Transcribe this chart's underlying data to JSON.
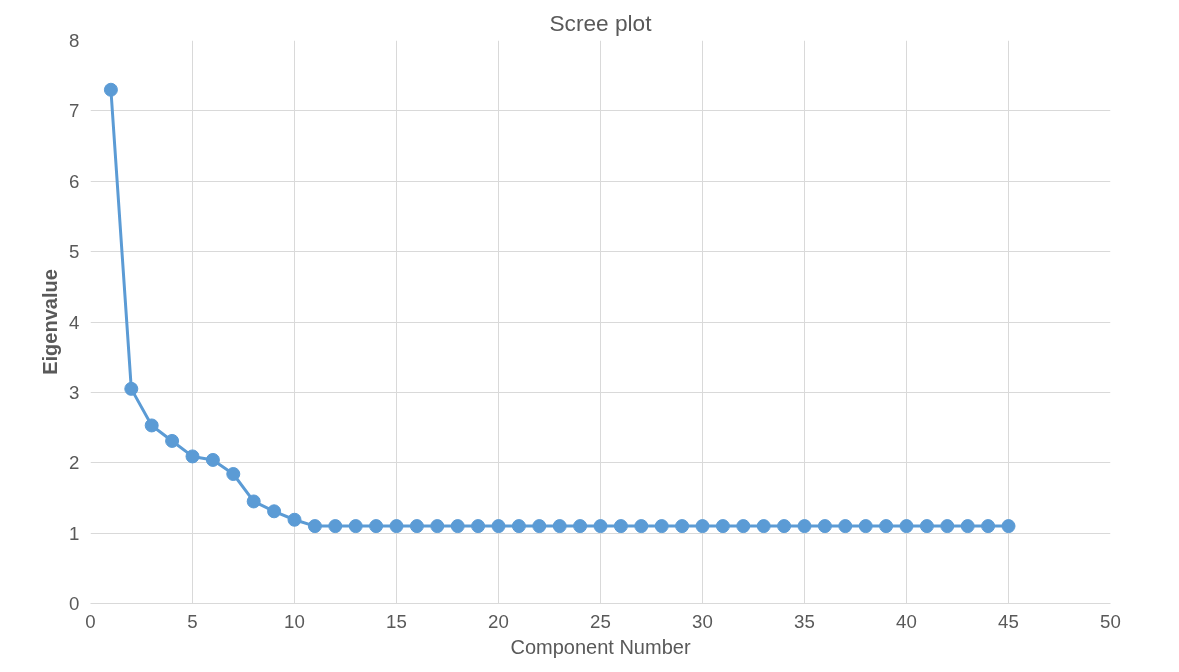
{
  "chart_data": {
    "type": "line",
    "title": "Scree plot",
    "xlabel": "Component Number",
    "ylabel": "Eigenvalue",
    "x": [
      1,
      2,
      3,
      4,
      5,
      6,
      7,
      8,
      9,
      10,
      11,
      12,
      13,
      14,
      15,
      16,
      17,
      18,
      19,
      20,
      21,
      22,
      23,
      24,
      25,
      26,
      27,
      28,
      29,
      30,
      31,
      32,
      33,
      34,
      35,
      36,
      37,
      38,
      39,
      40,
      41,
      42,
      43,
      44,
      45
    ],
    "series": [
      {
        "color": "#5b9bd5",
        "values": [
          7.3,
          3.05,
          2.53,
          2.31,
          2.09,
          2.04,
          1.84,
          1.45,
          1.31,
          1.19,
          1.1,
          1.1,
          1.1,
          1.1,
          1.1,
          1.1,
          1.1,
          1.1,
          1.1,
          1.1,
          1.1,
          1.1,
          1.1,
          1.1,
          1.1,
          1.1,
          1.1,
          1.1,
          1.1,
          1.1,
          1.1,
          1.1,
          1.1,
          1.1,
          1.1,
          1.1,
          1.1,
          1.1,
          1.1,
          1.1,
          1.1,
          1.1,
          1.1,
          1.1,
          1.1
        ]
      }
    ],
    "xlim": [
      0,
      50
    ],
    "xticks": [
      0,
      5,
      10,
      15,
      20,
      25,
      30,
      35,
      40,
      45,
      50
    ],
    "ylim": [
      0,
      8
    ],
    "yticks": [
      0,
      1,
      2,
      3,
      4,
      5,
      6,
      7,
      8
    ],
    "grid": true,
    "marker": "circle",
    "line_style": "solid"
  }
}
